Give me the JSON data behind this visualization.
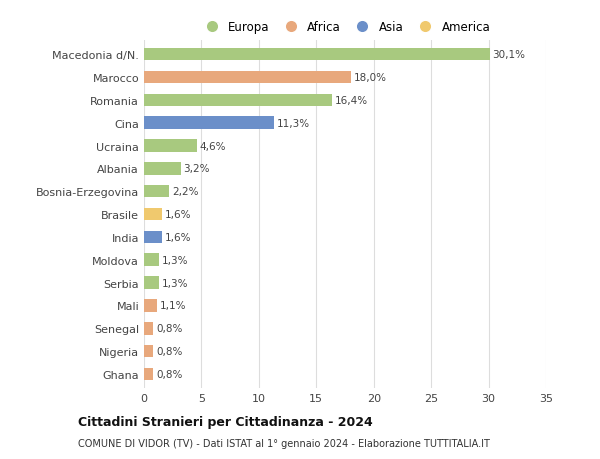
{
  "categories": [
    "Macedonia d/N.",
    "Marocco",
    "Romania",
    "Cina",
    "Ucraina",
    "Albania",
    "Bosnia-Erzegovina",
    "Brasile",
    "India",
    "Moldova",
    "Serbia",
    "Mali",
    "Senegal",
    "Nigeria",
    "Ghana"
  ],
  "values": [
    30.1,
    18.0,
    16.4,
    11.3,
    4.6,
    3.2,
    2.2,
    1.6,
    1.6,
    1.3,
    1.3,
    1.1,
    0.8,
    0.8,
    0.8
  ],
  "labels": [
    "30,1%",
    "18,0%",
    "16,4%",
    "11,3%",
    "4,6%",
    "3,2%",
    "2,2%",
    "1,6%",
    "1,6%",
    "1,3%",
    "1,3%",
    "1,1%",
    "0,8%",
    "0,8%",
    "0,8%"
  ],
  "colors": [
    "#a8c97f",
    "#e8a87c",
    "#a8c97f",
    "#6b8fc9",
    "#a8c97f",
    "#a8c97f",
    "#a8c97f",
    "#f0c96e",
    "#6b8fc9",
    "#a8c97f",
    "#a8c97f",
    "#e8a87c",
    "#e8a87c",
    "#e8a87c",
    "#e8a87c"
  ],
  "legend_labels": [
    "Europa",
    "Africa",
    "Asia",
    "America"
  ],
  "legend_colors": [
    "#a8c97f",
    "#e8a87c",
    "#6b8fc9",
    "#f0c96e"
  ],
  "title": "Cittadini Stranieri per Cittadinanza - 2024",
  "subtitle": "COMUNE DI VIDOR (TV) - Dati ISTAT al 1° gennaio 2024 - Elaborazione TUTTITALIA.IT",
  "xlim": [
    0,
    35
  ],
  "xticks": [
    0,
    5,
    10,
    15,
    20,
    25,
    30,
    35
  ],
  "background_color": "#ffffff",
  "grid_color": "#dddddd"
}
